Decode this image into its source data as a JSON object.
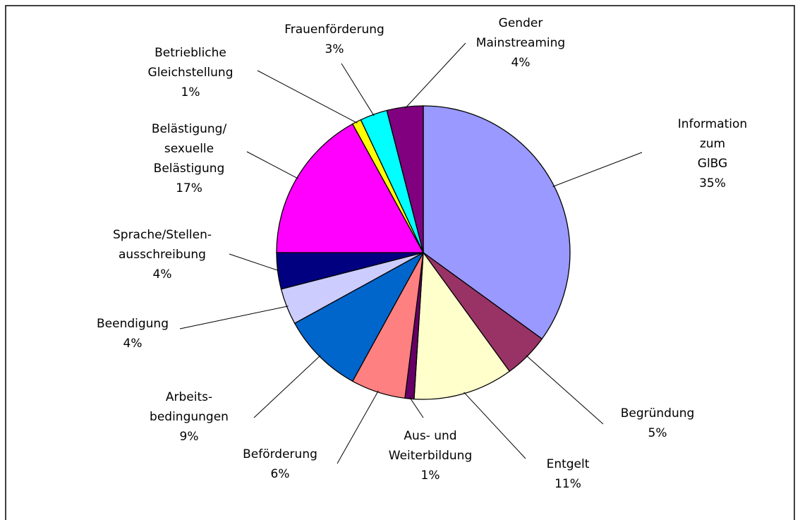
{
  "chart_data": {
    "type": "pie",
    "categories": [
      "Information zum\nGlBG",
      "Begründung",
      "Entgelt",
      "Aus- und\nWeiterbildung",
      "Beförderung",
      "Arbeits-\nbedingungen",
      "Beendigung",
      "Sprache/Stellen-\nausschreibung",
      "Belästigung/\nsexuelle\nBelästigung",
      "Betriebliche\nGleichstellung",
      "Frauenförderung",
      "Gender\nMainstreaming"
    ],
    "values": [
      35,
      5,
      11,
      1,
      6,
      9,
      4,
      4,
      17,
      1,
      3,
      4
    ],
    "value_labels": [
      "35%",
      "5%",
      "11%",
      "1%",
      "6%",
      "9%",
      "4%",
      "4%",
      "17%",
      "1%",
      "3%",
      "4%"
    ],
    "colors": [
      "#9999ff",
      "#993366",
      "#ffffcc",
      "#660066",
      "#ff8080",
      "#0066cc",
      "#ccccff",
      "#000080",
      "#ff00ff",
      "#ffff00",
      "#00ffff",
      "#800080"
    ]
  }
}
